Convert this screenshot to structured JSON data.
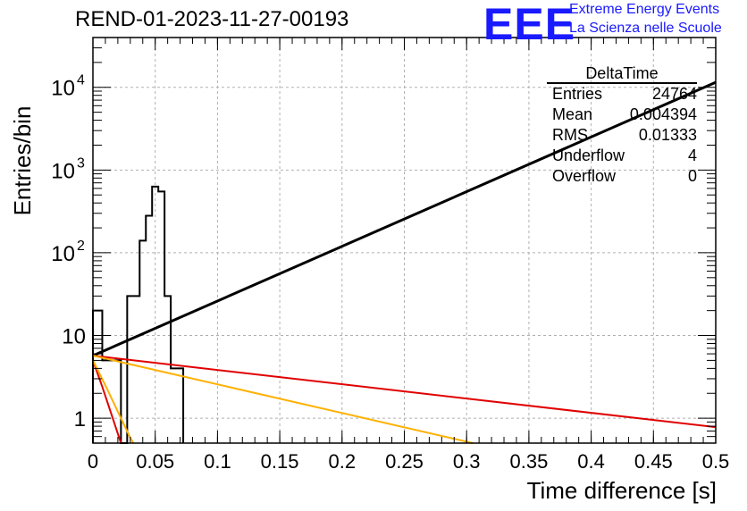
{
  "title": "REND-01-2023-11-27-00193",
  "logo": {
    "text": "EEE",
    "line1": "Extreme Energy Events",
    "line2": "La Scienza nelle Scuole",
    "color": "#1a1aff"
  },
  "stats_box": {
    "name": "DeltaTime",
    "rows": [
      {
        "label": "Entries",
        "value": "24764"
      },
      {
        "label": "Mean",
        "value": "0.004394"
      },
      {
        "label": "RMS",
        "value": "0.01333"
      },
      {
        "label": "Underflow",
        "value": "4"
      },
      {
        "label": "Overflow",
        "value": "0"
      }
    ]
  },
  "chart_data": {
    "type": "line",
    "title": "REND-01-2023-11-27-00193",
    "xlabel": "Time difference [s]",
    "ylabel": "Entries/bin",
    "xlim": [
      0,
      0.5
    ],
    "ylim": [
      0.5,
      40000
    ],
    "yscale": "log",
    "grid": true,
    "x_ticks": [
      "0",
      "0.05",
      "0.1",
      "0.15",
      "0.2",
      "0.25",
      "0.3",
      "0.35",
      "0.4",
      "0.45",
      "0.5"
    ],
    "y_ticks": [
      {
        "value": 1,
        "label": "1"
      },
      {
        "value": 10,
        "label": "10"
      },
      {
        "value": 100,
        "label": "10",
        "exp": "2"
      },
      {
        "value": 1000,
        "label": "10",
        "exp": "3"
      },
      {
        "value": 10000,
        "label": "10",
        "exp": "4"
      }
    ],
    "histogram": {
      "name": "DeltaTime",
      "bin_edges": [
        0,
        0.0025,
        0.005,
        0.0075,
        0.01,
        0.0125,
        0.015,
        0.0175,
        0.02,
        0.0225,
        0.025,
        0.0275,
        0.03,
        0.0325,
        0.035,
        0.0375,
        0.04,
        0.0425,
        0.045,
        0.0475,
        0.05,
        0.0525,
        0.055,
        0.0575,
        0.06,
        0.0625,
        0.065,
        0.0675,
        0.07,
        0.0725
      ],
      "counts": [
        20,
        20,
        20,
        5,
        5,
        5,
        5,
        5,
        5,
        0.4,
        0.4,
        30,
        30,
        30,
        30,
        140,
        140,
        280,
        280,
        630,
        630,
        550,
        550,
        30,
        30,
        4,
        4,
        4,
        4
      ]
    },
    "series": [
      {
        "color": "#000000",
        "x": [
          0,
          0.5
        ],
        "y": [
          5.7,
          11500
        ]
      },
      {
        "color": "#e00000",
        "x": [
          0,
          0.5
        ],
        "y": [
          5.7,
          0.78
        ]
      },
      {
        "color": "#ffb000",
        "x": [
          0,
          0.305
        ],
        "y": [
          5.7,
          0.5
        ]
      },
      {
        "color": "#e00000",
        "x": [
          0,
          0.0075,
          0.015,
          0.02,
          0.0225
        ],
        "y": [
          5.0,
          2.4,
          1.1,
          0.65,
          0.5
        ]
      },
      {
        "color": "#ffb000",
        "x": [
          0,
          0.01,
          0.02,
          0.03,
          0.0325
        ],
        "y": [
          5.0,
          2.5,
          1.2,
          0.58,
          0.5
        ]
      }
    ]
  }
}
